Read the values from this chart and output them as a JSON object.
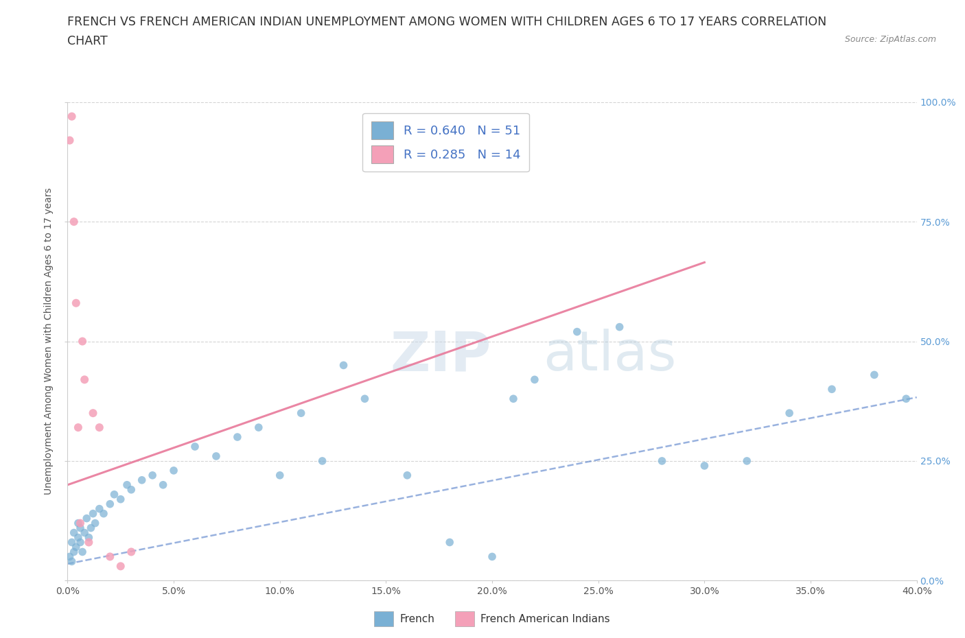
{
  "title_line1": "FRENCH VS FRENCH AMERICAN INDIAN UNEMPLOYMENT AMONG WOMEN WITH CHILDREN AGES 6 TO 17 YEARS CORRELATION",
  "title_line2": "CHART",
  "source": "Source: ZipAtlas.com",
  "xlabel_ticks": [
    "0.0%",
    "5.0%",
    "10.0%",
    "15.0%",
    "20.0%",
    "25.0%",
    "30.0%",
    "35.0%",
    "40.0%"
  ],
  "ylabel": "Unemployment Among Women with Children Ages 6 to 17 years",
  "ylabel_ticks": [
    "0.0%",
    "25.0%",
    "50.0%",
    "75.0%",
    "100.0%"
  ],
  "watermark_zip": "ZIP",
  "watermark_atlas": "atlas",
  "legend_label_french": "French",
  "legend_label_fai": "French American Indians",
  "french_color": "#7ab0d4",
  "fai_color": "#f4a0b8",
  "french_line_color": "#4472c4",
  "fai_line_color": "#e8799a",
  "xlim": [
    0.0,
    0.4
  ],
  "ylim": [
    0.0,
    1.0
  ],
  "french_scatter_x": [
    0.001,
    0.002,
    0.002,
    0.003,
    0.003,
    0.004,
    0.005,
    0.005,
    0.006,
    0.006,
    0.007,
    0.008,
    0.009,
    0.01,
    0.011,
    0.012,
    0.013,
    0.015,
    0.017,
    0.02,
    0.022,
    0.025,
    0.028,
    0.03,
    0.035,
    0.04,
    0.045,
    0.05,
    0.06,
    0.07,
    0.08,
    0.09,
    0.1,
    0.11,
    0.12,
    0.13,
    0.14,
    0.16,
    0.18,
    0.2,
    0.21,
    0.22,
    0.24,
    0.26,
    0.28,
    0.3,
    0.32,
    0.34,
    0.36,
    0.38,
    0.395
  ],
  "french_scatter_y": [
    0.05,
    0.04,
    0.08,
    0.06,
    0.1,
    0.07,
    0.09,
    0.12,
    0.08,
    0.11,
    0.06,
    0.1,
    0.13,
    0.09,
    0.11,
    0.14,
    0.12,
    0.15,
    0.14,
    0.16,
    0.18,
    0.17,
    0.2,
    0.19,
    0.21,
    0.22,
    0.2,
    0.23,
    0.28,
    0.26,
    0.3,
    0.32,
    0.22,
    0.35,
    0.25,
    0.45,
    0.38,
    0.22,
    0.08,
    0.05,
    0.38,
    0.42,
    0.52,
    0.53,
    0.25,
    0.24,
    0.25,
    0.35,
    0.4,
    0.43,
    0.38
  ],
  "fai_scatter_x": [
    0.001,
    0.002,
    0.003,
    0.004,
    0.005,
    0.006,
    0.007,
    0.008,
    0.01,
    0.012,
    0.015,
    0.02,
    0.025,
    0.03
  ],
  "fai_scatter_y": [
    0.92,
    0.97,
    0.75,
    0.58,
    0.32,
    0.12,
    0.5,
    0.42,
    0.08,
    0.35,
    0.32,
    0.05,
    0.03,
    0.06
  ],
  "background_color": "#ffffff",
  "grid_color": "#d0d0d0",
  "title_fontsize": 12.5,
  "axis_label_fontsize": 10,
  "tick_fontsize": 10,
  "legend_fontsize": 13
}
